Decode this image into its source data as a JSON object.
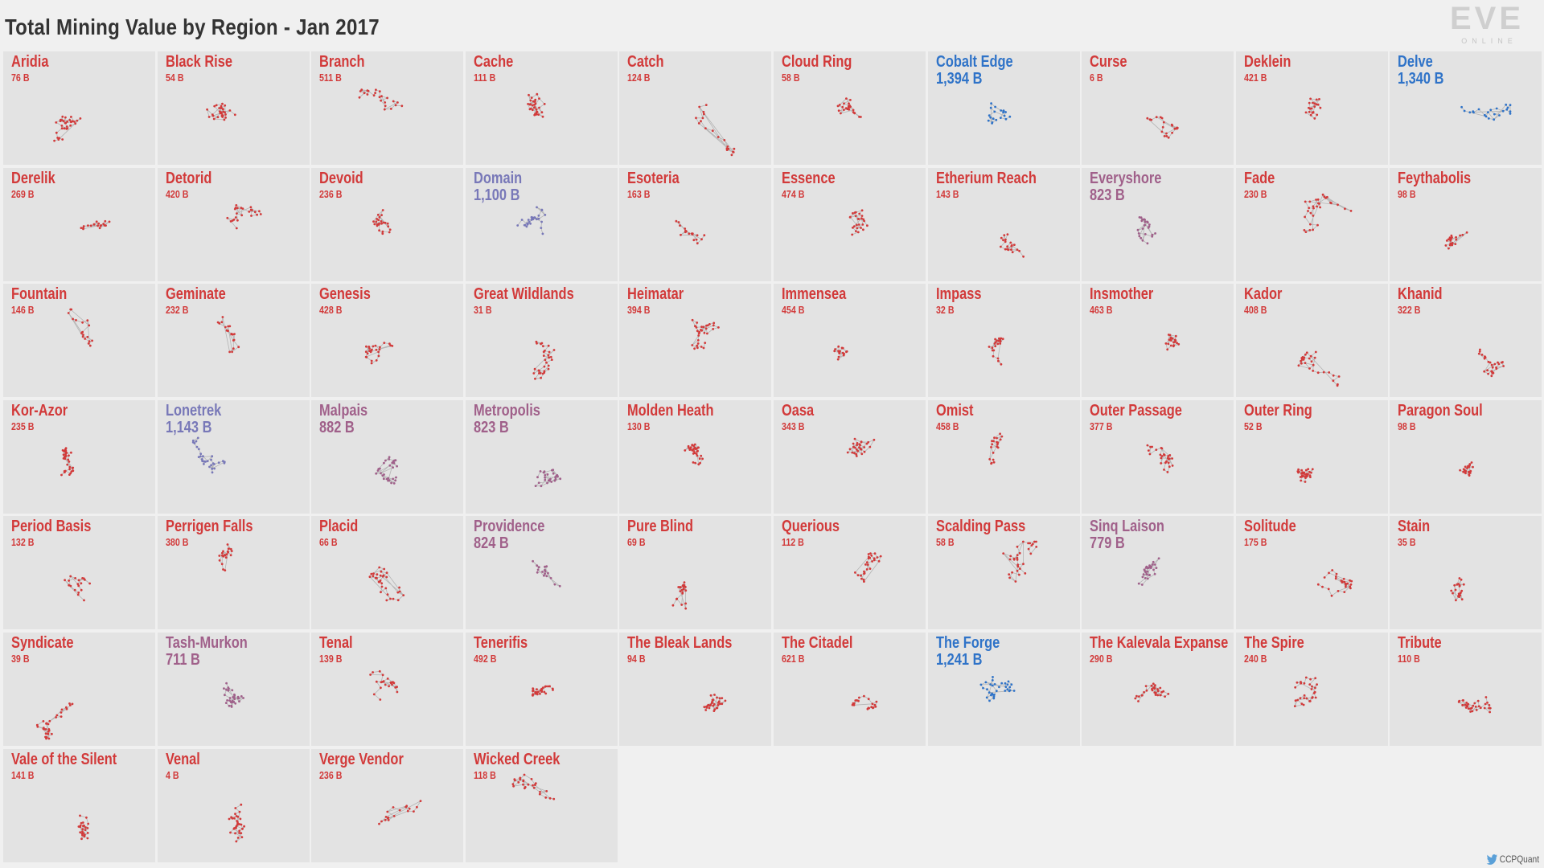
{
  "title": "Total Mining Value by Region - Jan 2017",
  "logo": {
    "text": "EVE",
    "subtext": "ONLINE"
  },
  "credit": {
    "icon": "twitter-bird-icon",
    "handle": "CCPQuant"
  },
  "colors": {
    "low": "#d23a3a",
    "mid": "#a0608a",
    "high": "#7878b8",
    "top": "#2f73c8",
    "background": "#f0f0f0",
    "cell": "#e3e3e3"
  },
  "chart_data": {
    "type": "table",
    "title": "Total Mining Value by Region - Jan 2017",
    "unit": "B",
    "regions": [
      {
        "name": "Aridia",
        "value": 76,
        "label": "76 B"
      },
      {
        "name": "Black Rise",
        "value": 54,
        "label": "54 B"
      },
      {
        "name": "Branch",
        "value": 511,
        "label": "511 B"
      },
      {
        "name": "Cache",
        "value": 111,
        "label": "111 B"
      },
      {
        "name": "Catch",
        "value": 124,
        "label": "124 B"
      },
      {
        "name": "Cloud Ring",
        "value": 58,
        "label": "58 B"
      },
      {
        "name": "Cobalt Edge",
        "value": 1394,
        "label": "1,394 B"
      },
      {
        "name": "Curse",
        "value": 6,
        "label": "6 B"
      },
      {
        "name": "Deklein",
        "value": 421,
        "label": "421 B"
      },
      {
        "name": "Delve",
        "value": 1340,
        "label": "1,340 B"
      },
      {
        "name": "Derelik",
        "value": 269,
        "label": "269 B"
      },
      {
        "name": "Detorid",
        "value": 420,
        "label": "420 B"
      },
      {
        "name": "Devoid",
        "value": 236,
        "label": "236 B"
      },
      {
        "name": "Domain",
        "value": 1100,
        "label": "1,100 B"
      },
      {
        "name": "Esoteria",
        "value": 163,
        "label": "163 B"
      },
      {
        "name": "Essence",
        "value": 474,
        "label": "474 B"
      },
      {
        "name": "Etherium Reach",
        "value": 143,
        "label": "143 B"
      },
      {
        "name": "Everyshore",
        "value": 823,
        "label": "823 B"
      },
      {
        "name": "Fade",
        "value": 230,
        "label": "230 B"
      },
      {
        "name": "Feythabolis",
        "value": 98,
        "label": "98 B"
      },
      {
        "name": "Fountain",
        "value": 146,
        "label": "146 B"
      },
      {
        "name": "Geminate",
        "value": 232,
        "label": "232 B"
      },
      {
        "name": "Genesis",
        "value": 428,
        "label": "428 B"
      },
      {
        "name": "Great Wildlands",
        "value": 31,
        "label": "31 B"
      },
      {
        "name": "Heimatar",
        "value": 394,
        "label": "394 B"
      },
      {
        "name": "Immensea",
        "value": 454,
        "label": "454 B"
      },
      {
        "name": "Impass",
        "value": 32,
        "label": "32 B"
      },
      {
        "name": "Insmother",
        "value": 463,
        "label": "463 B"
      },
      {
        "name": "Kador",
        "value": 408,
        "label": "408 B"
      },
      {
        "name": "Khanid",
        "value": 322,
        "label": "322 B"
      },
      {
        "name": "Kor-Azor",
        "value": 235,
        "label": "235 B"
      },
      {
        "name": "Lonetrek",
        "value": 1143,
        "label": "1,143 B"
      },
      {
        "name": "Malpais",
        "value": 882,
        "label": "882 B"
      },
      {
        "name": "Metropolis",
        "value": 823,
        "label": "823 B"
      },
      {
        "name": "Molden Heath",
        "value": 130,
        "label": "130 B"
      },
      {
        "name": "Oasa",
        "value": 343,
        "label": "343 B"
      },
      {
        "name": "Omist",
        "value": 458,
        "label": "458 B"
      },
      {
        "name": "Outer Passage",
        "value": 377,
        "label": "377 B"
      },
      {
        "name": "Outer Ring",
        "value": 52,
        "label": "52 B"
      },
      {
        "name": "Paragon Soul",
        "value": 98,
        "label": "98 B"
      },
      {
        "name": "Period Basis",
        "value": 132,
        "label": "132 B"
      },
      {
        "name": "Perrigen Falls",
        "value": 380,
        "label": "380 B"
      },
      {
        "name": "Placid",
        "value": 66,
        "label": "66 B"
      },
      {
        "name": "Providence",
        "value": 824,
        "label": "824 B"
      },
      {
        "name": "Pure Blind",
        "value": 69,
        "label": "69 B"
      },
      {
        "name": "Querious",
        "value": 112,
        "label": "112 B"
      },
      {
        "name": "Scalding Pass",
        "value": 58,
        "label": "58 B"
      },
      {
        "name": "Sinq Laison",
        "value": 779,
        "label": "779 B"
      },
      {
        "name": "Solitude",
        "value": 175,
        "label": "175 B"
      },
      {
        "name": "Stain",
        "value": 35,
        "label": "35 B"
      },
      {
        "name": "Syndicate",
        "value": 39,
        "label": "39 B"
      },
      {
        "name": "Tash-Murkon",
        "value": 711,
        "label": "711 B"
      },
      {
        "name": "Tenal",
        "value": 139,
        "label": "139 B"
      },
      {
        "name": "Tenerifis",
        "value": 492,
        "label": "492 B"
      },
      {
        "name": "The Bleak Lands",
        "value": 94,
        "label": "94 B"
      },
      {
        "name": "The Citadel",
        "value": 621,
        "label": "621 B"
      },
      {
        "name": "The Forge",
        "value": 1241,
        "label": "1,241 B"
      },
      {
        "name": "The Kalevala Expanse",
        "value": 290,
        "label": "290 B"
      },
      {
        "name": "The Spire",
        "value": 240,
        "label": "240 B"
      },
      {
        "name": "Tribute",
        "value": 110,
        "label": "110 B"
      },
      {
        "name": "Vale of the Silent",
        "value": 141,
        "label": "141 B"
      },
      {
        "name": "Venal",
        "value": 4,
        "label": "4 B"
      },
      {
        "name": "Verge Vendor",
        "value": 236,
        "label": "236 B"
      },
      {
        "name": "Wicked Creek",
        "value": 118,
        "label": "118 B"
      }
    ]
  }
}
